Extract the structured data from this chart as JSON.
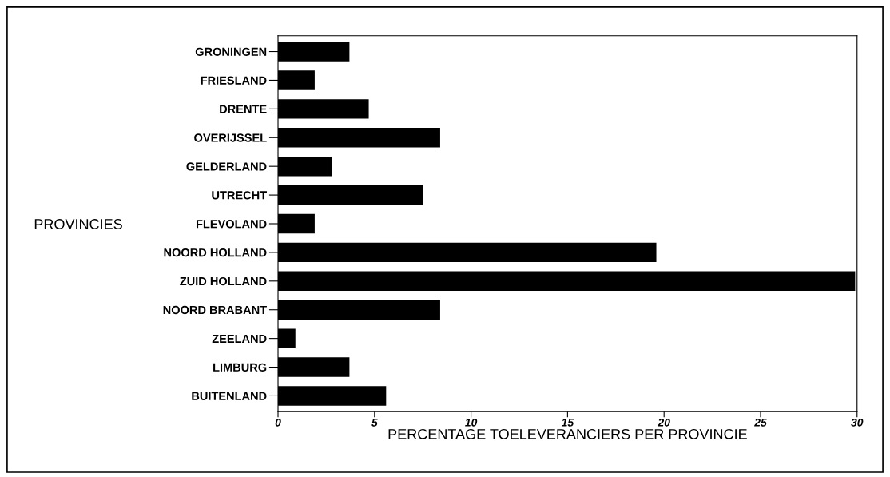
{
  "chart_data": {
    "type": "bar",
    "orientation": "horizontal",
    "categories": [
      "GRONINGEN",
      "FRIESLAND",
      "DRENTE",
      "OVERIJSSEL",
      "GELDERLAND",
      "UTRECHT",
      "FLEVOLAND",
      "NOORD HOLLAND",
      "ZUID HOLLAND",
      "NOORD BRABANT",
      "ZEELAND",
      "LIMBURG",
      "BUITENLAND"
    ],
    "values": [
      3.7,
      1.9,
      4.7,
      8.4,
      2.8,
      7.5,
      1.9,
      19.6,
      29.9,
      8.4,
      0.9,
      3.7,
      5.6
    ],
    "color": "#000000",
    "xlabel": "PERCENTAGE TOELEVERANCIERS PER PROVINCIE",
    "ylabel": "PROVINCIES",
    "xlim": [
      0,
      30
    ],
    "xticks": [
      0,
      5,
      10,
      15,
      20,
      25,
      30
    ],
    "grid": false,
    "legend": false
  }
}
